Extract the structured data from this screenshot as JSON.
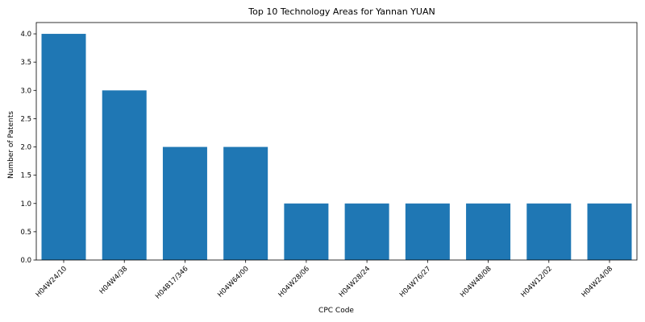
{
  "chart_data": {
    "type": "bar",
    "title": "Top 10 Technology Areas for Yannan YUAN",
    "xlabel": "CPC Code",
    "ylabel": "Number of Patents",
    "categories": [
      "H04W24/10",
      "H04W4/38",
      "H04B17/346",
      "H04W64/00",
      "H04W28/06",
      "H04W28/24",
      "H04W76/27",
      "H04W48/08",
      "H04W12/02",
      "H04W24/08"
    ],
    "values": [
      4,
      3,
      2,
      2,
      1,
      1,
      1,
      1,
      1,
      1
    ],
    "ylim": [
      0,
      4.2
    ],
    "yticks": [
      "0.0",
      "0.5",
      "1.0",
      "1.5",
      "2.0",
      "2.5",
      "3.0",
      "3.5",
      "4.0"
    ],
    "grid": false,
    "bar_color": "#1f77b4"
  }
}
